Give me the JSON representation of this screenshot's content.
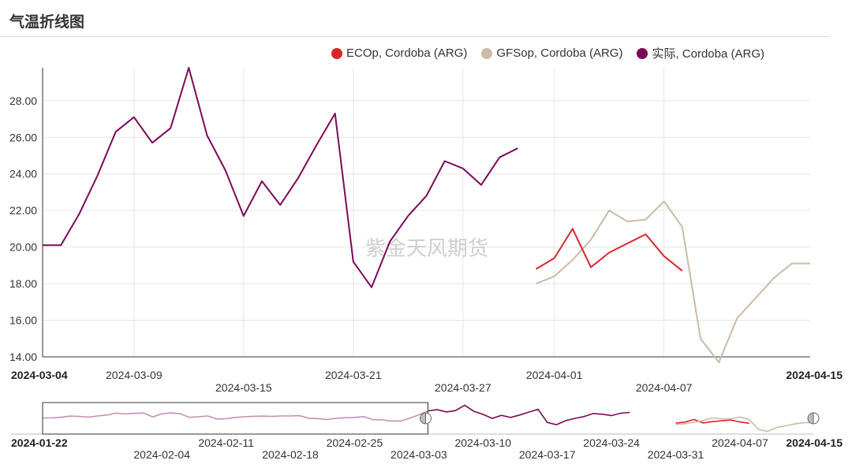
{
  "title": "气温折线图",
  "watermark": "紫金天风期货",
  "legend": [
    {
      "label": "ECOp, Cordoba (ARG)",
      "color": "#d8262c"
    },
    {
      "label": "GFSop, Cordoba (ARG)",
      "color": "#cbbba8"
    },
    {
      "label": "实际, Cordoba (ARG)",
      "color": "#7b0a5a"
    }
  ],
  "chart_data": {
    "type": "line",
    "title": "气温折线图",
    "xlabel": "",
    "ylabel": "",
    "xlim": [
      "2024-03-04",
      "2024-04-15"
    ],
    "ylim": [
      14,
      29.8
    ],
    "yticks": [
      "14.00",
      "16.00",
      "18.00",
      "20.00",
      "22.00",
      "24.00",
      "26.00",
      "28.00"
    ],
    "xticks": [
      {
        "label": "2024-03-04",
        "bold": true
      },
      {
        "label": "2024-03-09",
        "bold": false
      },
      {
        "label": "2024-03-15",
        "bold": false
      },
      {
        "label": "2024-03-21",
        "bold": false
      },
      {
        "label": "2024-03-27",
        "bold": false
      },
      {
        "label": "2024-04-01",
        "bold": false
      },
      {
        "label": "2024-04-07",
        "bold": false
      },
      {
        "label": "2024-04-15",
        "bold": true
      }
    ],
    "grid": true,
    "legend_position": "top-right",
    "series": [
      {
        "name": "实际, Cordoba (ARG)",
        "color": "#7b0a5a",
        "x": [
          "2024-03-04",
          "2024-03-05",
          "2024-03-06",
          "2024-03-07",
          "2024-03-08",
          "2024-03-09",
          "2024-03-10",
          "2024-03-11",
          "2024-03-12",
          "2024-03-13",
          "2024-03-14",
          "2024-03-15",
          "2024-03-16",
          "2024-03-17",
          "2024-03-18",
          "2024-03-19",
          "2024-03-20",
          "2024-03-21",
          "2024-03-22",
          "2024-03-23",
          "2024-03-24",
          "2024-03-25",
          "2024-03-26",
          "2024-03-27",
          "2024-03-28",
          "2024-03-29",
          "2024-03-30"
        ],
        "y": [
          20.1,
          20.1,
          21.8,
          23.9,
          26.3,
          27.1,
          25.7,
          26.5,
          29.8,
          26.1,
          24.2,
          21.7,
          23.6,
          22.3,
          23.8,
          25.6,
          27.3,
          19.2,
          17.8,
          20.3,
          21.7,
          22.8,
          24.7,
          24.3,
          23.4,
          24.9,
          25.4
        ]
      },
      {
        "name": "ECOp, Cordoba (ARG)",
        "color": "#d8262c",
        "x": [
          "2024-03-31",
          "2024-04-01",
          "2024-04-02",
          "2024-04-03",
          "2024-04-04",
          "2024-04-05",
          "2024-04-06",
          "2024-04-07",
          "2024-04-08"
        ],
        "y": [
          18.8,
          19.4,
          21.0,
          18.9,
          19.7,
          20.2,
          20.7,
          19.5,
          18.7
        ]
      },
      {
        "name": "GFSop, Cordoba (ARG)",
        "color": "#cbbba8",
        "x": [
          "2024-03-31",
          "2024-04-01",
          "2024-04-02",
          "2024-04-03",
          "2024-04-04",
          "2024-04-05",
          "2024-04-06",
          "2024-04-07",
          "2024-04-08",
          "2024-04-09",
          "2024-04-10",
          "2024-04-11",
          "2024-04-12",
          "2024-04-13",
          "2024-04-14",
          "2024-04-15"
        ],
        "y": [
          18.0,
          18.4,
          19.3,
          20.4,
          22.0,
          21.4,
          21.5,
          22.5,
          21.1,
          15.0,
          13.7,
          16.1,
          17.2,
          18.3,
          19.1,
          19.1
        ]
      }
    ]
  },
  "navigator": {
    "start_label": "2024-01-22",
    "end_label": "2024-04-15",
    "xlim": [
      "2024-01-22",
      "2024-04-15"
    ],
    "selected_range": [
      "2024-01-22",
      "2024-03-04"
    ],
    "ticks_upper": [
      "2024-02-11",
      "2024-02-25",
      "2024-03-10",
      "2024-03-24",
      "2024-04-07"
    ],
    "ticks_lower": [
      "2024-02-04",
      "2024-02-18",
      "2024-03-03",
      "2024-03-17",
      "2024-03-31"
    ],
    "series": [
      {
        "name": "实际, Cordoba (ARG)",
        "color": "#7b0a5a",
        "x_start": "2024-01-22",
        "y": [
          22.0,
          22.0,
          22.4,
          23.1,
          22.9,
          22.5,
          23.2,
          23.8,
          24.9,
          24.4,
          24.8,
          25.0,
          22.6,
          24.5,
          25.1,
          24.5,
          22.4,
          22.7,
          23.2,
          21.3,
          21.5,
          22.3,
          22.7,
          23.0,
          23.1,
          22.9,
          23.2,
          23.2,
          23.4,
          21.8,
          21.6,
          21.0,
          21.8,
          22.1,
          22.3,
          22.8,
          20.9,
          20.8,
          20.1,
          20.1,
          21.8,
          23.9,
          26.3,
          27.1,
          25.7,
          26.5,
          29.8,
          26.1,
          24.2,
          21.7,
          23.6,
          22.3,
          23.8,
          25.6,
          27.3,
          19.2,
          17.8,
          20.3,
          21.7,
          22.8,
          24.7,
          24.3,
          23.4,
          24.9,
          25.4
        ]
      },
      {
        "name": "ECOp, Cordoba (ARG)",
        "color": "#d8262c",
        "x_start": "2024-03-31",
        "y": [
          18.8,
          19.4,
          21.0,
          18.9,
          19.7,
          20.2,
          20.7,
          19.5,
          18.7
        ]
      },
      {
        "name": "GFSop, Cordoba (ARG)",
        "color": "#cbbba8",
        "x_start": "2024-03-31",
        "y": [
          18.0,
          18.4,
          19.3,
          20.4,
          22.0,
          21.4,
          21.5,
          22.5,
          21.1,
          15.0,
          13.7,
          16.1,
          17.2,
          18.3,
          19.1,
          19.1
        ]
      }
    ]
  }
}
